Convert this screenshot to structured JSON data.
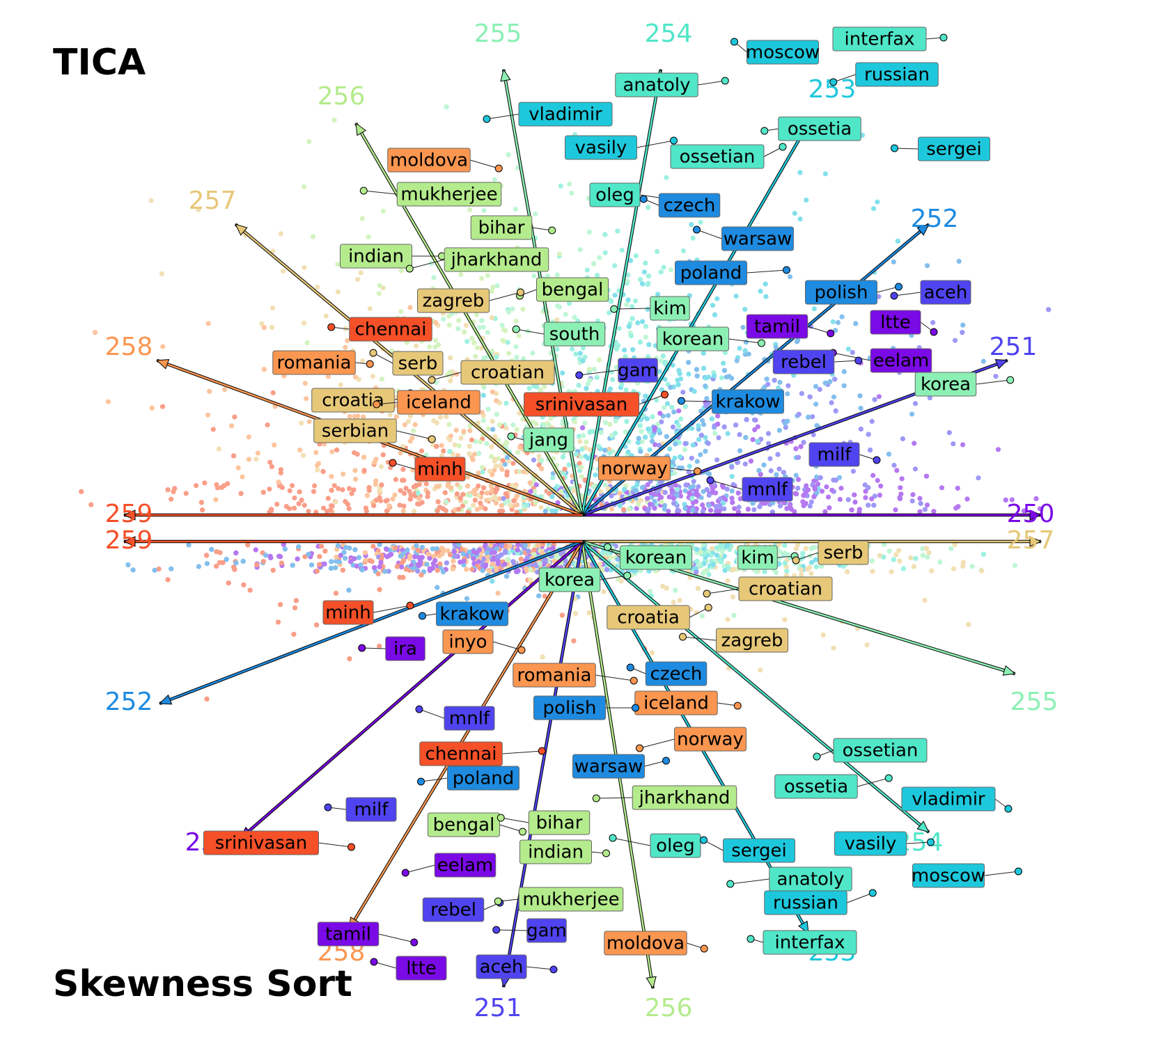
{
  "chart_data": [
    {
      "type": "scatter",
      "title": "TICA",
      "description_dims": "dimensions 250-259 shown as direction arrows from a common origin",
      "dimensions": [
        {
          "id": "250",
          "angle_deg": 0,
          "color": "#7a0ae6"
        },
        {
          "id": "251",
          "angle_deg": 20,
          "color": "#5044f0"
        },
        {
          "id": "252",
          "angle_deg": 40,
          "color": "#1e8be0"
        },
        {
          "id": "253",
          "angle_deg": 60,
          "color": "#1ec8dc"
        },
        {
          "id": "254",
          "angle_deg": 80,
          "color": "#50e6c8"
        },
        {
          "id": "255",
          "angle_deg": 100,
          "color": "#8cf0b4"
        },
        {
          "id": "256",
          "angle_deg": 120,
          "color": "#b4eb8c"
        },
        {
          "id": "257",
          "angle_deg": 140,
          "color": "#e6c878"
        },
        {
          "id": "258",
          "angle_deg": 160,
          "color": "#fa9650"
        },
        {
          "id": "259",
          "angle_deg": 180,
          "color": "#f55028"
        }
      ],
      "words": [
        {
          "text": "moscow",
          "dim": "253"
        },
        {
          "text": "interfax",
          "dim": "254"
        },
        {
          "text": "russian",
          "dim": "253"
        },
        {
          "text": "anatoly",
          "dim": "254"
        },
        {
          "text": "vladimir",
          "dim": "253"
        },
        {
          "text": "vasily",
          "dim": "253"
        },
        {
          "text": "ossetia",
          "dim": "254"
        },
        {
          "text": "ossetian",
          "dim": "254"
        },
        {
          "text": "sergei",
          "dim": "253"
        },
        {
          "text": "moldova",
          "dim": "258"
        },
        {
          "text": "mukherjee",
          "dim": "256"
        },
        {
          "text": "oleg",
          "dim": "254"
        },
        {
          "text": "czech",
          "dim": "252"
        },
        {
          "text": "bihar",
          "dim": "256"
        },
        {
          "text": "warsaw",
          "dim": "252"
        },
        {
          "text": "indian",
          "dim": "256"
        },
        {
          "text": "jharkhand",
          "dim": "256"
        },
        {
          "text": "poland",
          "dim": "252"
        },
        {
          "text": "bengal",
          "dim": "256"
        },
        {
          "text": "polish",
          "dim": "252"
        },
        {
          "text": "aceh",
          "dim": "251"
        },
        {
          "text": "zagreb",
          "dim": "257"
        },
        {
          "text": "kim",
          "dim": "255"
        },
        {
          "text": "ltte",
          "dim": "250"
        },
        {
          "text": "chennai",
          "dim": "259"
        },
        {
          "text": "tamil",
          "dim": "250"
        },
        {
          "text": "south",
          "dim": "255"
        },
        {
          "text": "korean",
          "dim": "255"
        },
        {
          "text": "eelam",
          "dim": "250"
        },
        {
          "text": "romania",
          "dim": "258"
        },
        {
          "text": "serb",
          "dim": "257"
        },
        {
          "text": "rebel",
          "dim": "251"
        },
        {
          "text": "croatian",
          "dim": "257"
        },
        {
          "text": "korea",
          "dim": "255"
        },
        {
          "text": "gam",
          "dim": "251"
        },
        {
          "text": "croatia",
          "dim": "257"
        },
        {
          "text": "iceland",
          "dim": "258"
        },
        {
          "text": "srinivasan",
          "dim": "259"
        },
        {
          "text": "krakow",
          "dim": "252"
        },
        {
          "text": "serbian",
          "dim": "257"
        },
        {
          "text": "jang",
          "dim": "255"
        },
        {
          "text": "milf",
          "dim": "251"
        },
        {
          "text": "minh",
          "dim": "259"
        },
        {
          "text": "norway",
          "dim": "258"
        },
        {
          "text": "mnlf",
          "dim": "251"
        }
      ]
    },
    {
      "type": "scatter",
      "title": "Skewness Sort",
      "dimensions": [
        {
          "id": "257",
          "angle_deg": 0,
          "color": "#e6c878"
        },
        {
          "id": "255",
          "angle_deg": -17,
          "color": "#8cf0b4"
        },
        {
          "id": "254",
          "angle_deg": -40,
          "color": "#50e6c8"
        },
        {
          "id": "253",
          "angle_deg": -60,
          "color": "#1ec8dc"
        },
        {
          "id": "256",
          "angle_deg": -81,
          "color": "#b4eb8c"
        },
        {
          "id": "251",
          "angle_deg": -100,
          "color": "#5044f0"
        },
        {
          "id": "258",
          "angle_deg": -121,
          "color": "#fa9650"
        },
        {
          "id": "250",
          "angle_deg": -139,
          "color": "#7a0ae6"
        },
        {
          "id": "252",
          "angle_deg": -159,
          "color": "#1e8be0"
        },
        {
          "id": "259",
          "angle_deg": 180,
          "color": "#f55028"
        }
      ],
      "words": [
        {
          "text": "korean",
          "dim": "255"
        },
        {
          "text": "kim",
          "dim": "255"
        },
        {
          "text": "serb",
          "dim": "257"
        },
        {
          "text": "korea",
          "dim": "255"
        },
        {
          "text": "croatian",
          "dim": "257"
        },
        {
          "text": "minh",
          "dim": "259"
        },
        {
          "text": "krakow",
          "dim": "252"
        },
        {
          "text": "croatia",
          "dim": "257"
        },
        {
          "text": "ira",
          "dim": "250"
        },
        {
          "text": "inyo",
          "dim": "258"
        },
        {
          "text": "zagreb",
          "dim": "257"
        },
        {
          "text": "romania",
          "dim": "258"
        },
        {
          "text": "czech",
          "dim": "252"
        },
        {
          "text": "iceland",
          "dim": "258"
        },
        {
          "text": "mnlf",
          "dim": "251"
        },
        {
          "text": "polish",
          "dim": "252"
        },
        {
          "text": "norway",
          "dim": "258"
        },
        {
          "text": "chennai",
          "dim": "259"
        },
        {
          "text": "ossetian",
          "dim": "254"
        },
        {
          "text": "warsaw",
          "dim": "252"
        },
        {
          "text": "poland",
          "dim": "252"
        },
        {
          "text": "ossetia",
          "dim": "254"
        },
        {
          "text": "jharkhand",
          "dim": "256"
        },
        {
          "text": "vladimir",
          "dim": "253"
        },
        {
          "text": "milf",
          "dim": "251"
        },
        {
          "text": "bengal",
          "dim": "256"
        },
        {
          "text": "bihar",
          "dim": "256"
        },
        {
          "text": "srinivasan",
          "dim": "259"
        },
        {
          "text": "oleg",
          "dim": "254"
        },
        {
          "text": "indian",
          "dim": "256"
        },
        {
          "text": "sergei",
          "dim": "253"
        },
        {
          "text": "vasily",
          "dim": "253"
        },
        {
          "text": "eelam",
          "dim": "250"
        },
        {
          "text": "moscow",
          "dim": "253"
        },
        {
          "text": "anatoly",
          "dim": "254"
        },
        {
          "text": "rebel",
          "dim": "251"
        },
        {
          "text": "mukherjee",
          "dim": "256"
        },
        {
          "text": "russian",
          "dim": "253"
        },
        {
          "text": "gam",
          "dim": "251"
        },
        {
          "text": "tamil",
          "dim": "250"
        },
        {
          "text": "interfax",
          "dim": "254"
        },
        {
          "text": "moldova",
          "dim": "258"
        },
        {
          "text": "ltte",
          "dim": "250"
        },
        {
          "text": "aceh",
          "dim": "251"
        }
      ]
    }
  ]
}
